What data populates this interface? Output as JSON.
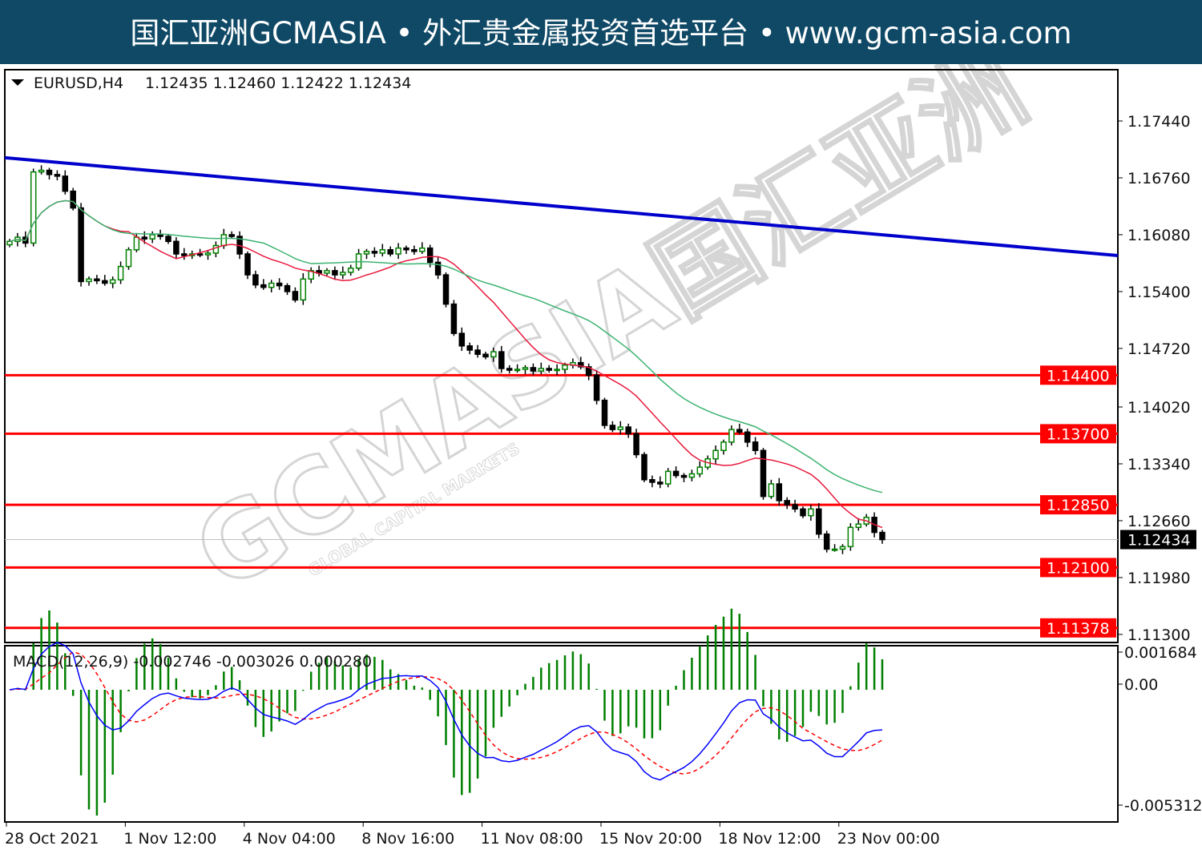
{
  "banner": {
    "text": "国汇亚洲GCMASIA • 外汇贵金属投资首选平台 • www.gcm-asia.com",
    "background": "#0f4966"
  },
  "watermark": {
    "main": "GCMASIA国汇亚洲",
    "sub": "GLOBAL CAPITAL MARKETS"
  },
  "chart_data": [
    {
      "type": "candlestick",
      "title": "EURUSD,H4",
      "ohlc_readout": "1.12435 1.12460 1.12422 1.12434",
      "ylim": [
        1.1126,
        1.1792
      ],
      "y_ticks": [
        "1.17440",
        "1.16760",
        "1.16080",
        "1.15400",
        "1.14720",
        "1.14020",
        "1.13340",
        "1.12660",
        "1.11980",
        "1.11300"
      ],
      "x_ticks": [
        "28 Oct 2021",
        "1 Nov 12:00",
        "4 Nov 04:00",
        "8 Nov 16:00",
        "11 Nov 08:00",
        "15 Nov 20:00",
        "18 Nov 12:00",
        "23 Nov 00:00"
      ],
      "closes": [
        1.16,
        1.1605,
        1.1598,
        1.1683,
        1.1685,
        1.168,
        1.1678,
        1.166,
        1.164,
        1.1552,
        1.1555,
        1.1553,
        1.155,
        1.1554,
        1.157,
        1.159,
        1.1605,
        1.1603,
        1.1608,
        1.1606,
        1.16,
        1.1585,
        1.1583,
        1.1585,
        1.1584,
        1.1586,
        1.1595,
        1.1608,
        1.1606,
        1.1585,
        1.156,
        1.1548,
        1.1545,
        1.155,
        1.1547,
        1.154,
        1.153,
        1.1555,
        1.1565,
        1.1562,
        1.1565,
        1.156,
        1.1563,
        1.1568,
        1.1585,
        1.1588,
        1.1586,
        1.159,
        1.1585,
        1.1592,
        1.159,
        1.1588,
        1.1592,
        1.1575,
        1.156,
        1.1525,
        1.149,
        1.1475,
        1.147,
        1.1465,
        1.1462,
        1.1468,
        1.1448,
        1.1446,
        1.1447,
        1.1449,
        1.1445,
        1.1448,
        1.1446,
        1.1447,
        1.1452,
        1.1455,
        1.145,
        1.144,
        1.141,
        1.138,
        1.1375,
        1.1378,
        1.137,
        1.1345,
        1.1315,
        1.1312,
        1.131,
        1.1325,
        1.132,
        1.1318,
        1.1322,
        1.133,
        1.134,
        1.135,
        1.136,
        1.1375,
        1.1372,
        1.136,
        1.135,
        1.1295,
        1.131,
        1.129,
        1.1285,
        1.128,
        1.1272,
        1.128,
        1.125,
        1.1232,
        1.1232,
        1.1235,
        1.1258,
        1.1262,
        1.127,
        1.1252,
        1.12434
      ],
      "bull_color": "#008000",
      "bear_color": "#000000",
      "moving_averages": [
        {
          "color": "#e8193c"
        },
        {
          "color": "#3cb371"
        }
      ],
      "trendline": {
        "start": 1.17,
        "end": 1.15831,
        "color": "#0000cc"
      },
      "horizontal_levels": [
        {
          "value": "1.14400",
          "color": "#ff0000"
        },
        {
          "value": "1.13700",
          "color": "#ff0000"
        },
        {
          "value": "1.12850",
          "color": "#ff0000"
        },
        {
          "value": "1.12100",
          "color": "#ff0000"
        },
        {
          "value": "1.11378",
          "color": "#ff0000"
        }
      ],
      "current_price": {
        "value": "1.12434",
        "color": "#000000"
      }
    },
    {
      "type": "macd",
      "title": "MACD(12,26,9) -0.002746 -0.003026 0.000280",
      "y_ticks": [
        "0.001684",
        "0.00",
        "-0.005312"
      ],
      "ylim": [
        -0.005312,
        0.001684
      ],
      "line_colors": {
        "main": "#0000ff",
        "signal": "#ff0000",
        "histogram": "#008000"
      }
    }
  ]
}
